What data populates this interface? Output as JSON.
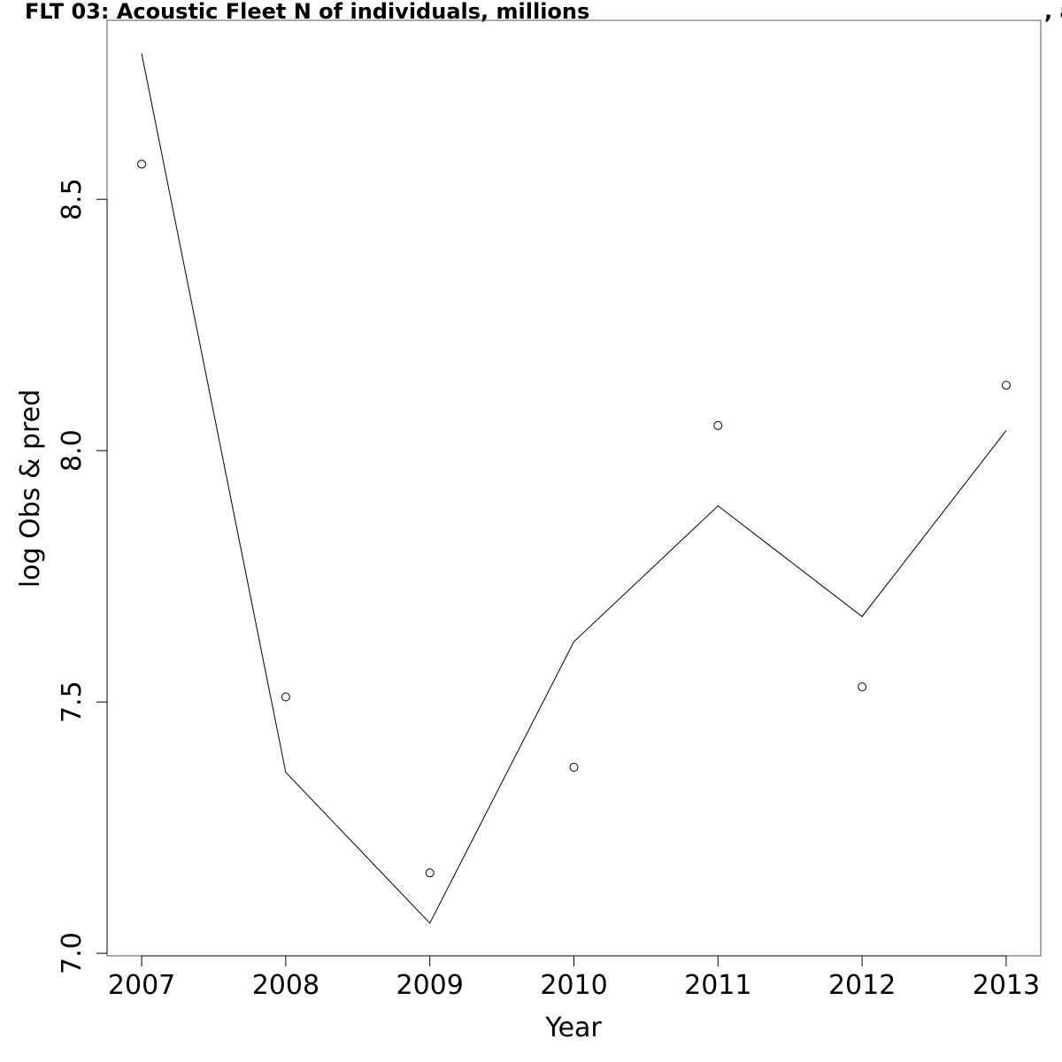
{
  "title": "FLT 03: Acoustic Fleet   N of individuals, millions",
  "title_suffix": ", a",
  "chart_data": {
    "type": "line",
    "title": "FLT 03: Acoustic Fleet   N of individuals, millions",
    "xlabel": "Year",
    "ylabel": "log Obs & pred",
    "x": [
      2007,
      2008,
      2009,
      2010,
      2011,
      2012,
      2013
    ],
    "x_tick_labels": [
      "2007",
      "2008",
      "2009",
      "2010",
      "2011",
      "2012",
      "2013"
    ],
    "y_ticks": [
      7.0,
      7.5,
      8.0,
      8.5
    ],
    "y_tick_labels": [
      "7.0",
      "7.5",
      "8.0",
      "8.5"
    ],
    "xlim": [
      2006.76,
      2013.24
    ],
    "ylim": [
      6.995,
      8.856
    ],
    "grid": false,
    "series": [
      {
        "style": "points",
        "marker": "open-circle",
        "values": [
          8.57,
          7.51,
          7.16,
          7.37,
          8.05,
          7.53,
          8.13
        ]
      },
      {
        "style": "line",
        "values": [
          8.79,
          7.36,
          7.06,
          7.62,
          7.89,
          7.67,
          8.04
        ]
      }
    ]
  }
}
